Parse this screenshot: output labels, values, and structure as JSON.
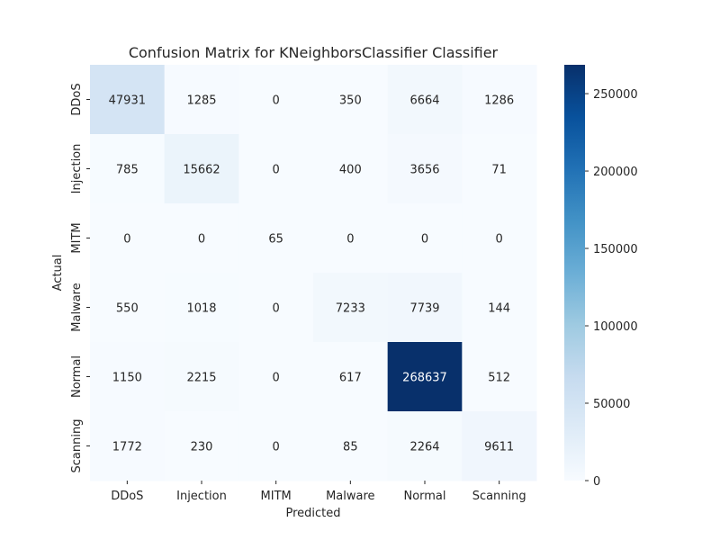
{
  "chart_data": {
    "type": "heatmap",
    "title": "Confusion Matrix for KNeighborsClassifier Classifier",
    "xlabel": "Predicted",
    "ylabel": "Actual",
    "x_categories": [
      "DDoS",
      "Injection",
      "MITM",
      "Malware",
      "Normal",
      "Scanning"
    ],
    "y_categories": [
      "DDoS",
      "Injection",
      "MITM",
      "Malware",
      "Normal",
      "Scanning"
    ],
    "values": [
      [
        47931,
        1285,
        0,
        350,
        6664,
        1286
      ],
      [
        785,
        15662,
        0,
        400,
        3656,
        71
      ],
      [
        0,
        0,
        65,
        0,
        0,
        0
      ],
      [
        550,
        1018,
        0,
        7233,
        7739,
        144
      ],
      [
        1150,
        2215,
        0,
        617,
        268637,
        512
      ],
      [
        1772,
        230,
        0,
        85,
        2264,
        9611
      ]
    ],
    "colorbar": {
      "colormap": "Blues",
      "min": 0,
      "max": 268637,
      "ticks": [
        0,
        50000,
        100000,
        150000,
        200000,
        250000
      ]
    },
    "grid": false
  }
}
